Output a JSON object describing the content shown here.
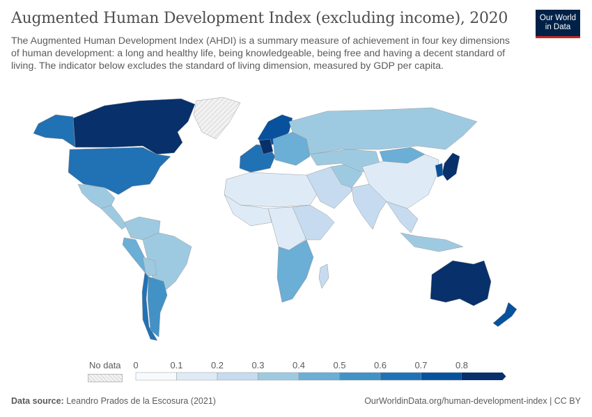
{
  "header": {
    "title": "Augmented Human Development Index (excluding income), 2020",
    "subtitle": "The Augmented Human Development Index (AHDI) is a summary measure of achievement in four key dimensions of human development: a long and healthy life, being knowledgeable, being free and having a decent standard of living. The indicator below excludes the standard of living dimension, measured by GDP per capita.",
    "logo_line1": "Our World",
    "logo_line2": "in Data"
  },
  "legend": {
    "no_data_label": "No data",
    "ticks": [
      "0",
      "0.1",
      "0.2",
      "0.3",
      "0.4",
      "0.5",
      "0.6",
      "0.7",
      "0.8"
    ],
    "bin_colors": [
      "#f7fbff",
      "#deebf7",
      "#c6dbef",
      "#9ecae1",
      "#6baed6",
      "#4292c6",
      "#2171b5",
      "#08519c",
      "#08306b"
    ],
    "no_data_color": "#e0e0e0"
  },
  "map_data": {
    "year": 2020,
    "regions": [
      {
        "name": "Canada",
        "value": 0.85
      },
      {
        "name": "Alaska",
        "value": 0.65
      },
      {
        "name": "United States",
        "value": 0.65
      },
      {
        "name": "Greenland",
        "value": null
      },
      {
        "name": "Mexico",
        "value": 0.35
      },
      {
        "name": "Central America",
        "value": 0.3
      },
      {
        "name": "Colombia/Venezuela",
        "value": 0.3
      },
      {
        "name": "Peru/Ecuador",
        "value": 0.45
      },
      {
        "name": "Brazil",
        "value": 0.35
      },
      {
        "name": "Bolivia",
        "value": 0.3
      },
      {
        "name": "Chile",
        "value": 0.65
      },
      {
        "name": "Argentina",
        "value": 0.55
      },
      {
        "name": "Western Europe",
        "value": 0.6
      },
      {
        "name": "Scandinavia",
        "value": 0.75
      },
      {
        "name": "Germany",
        "value": 0.85
      },
      {
        "name": "Eastern Europe",
        "value": 0.45
      },
      {
        "name": "Russia",
        "value": 0.35
      },
      {
        "name": "North Africa",
        "value": 0.15
      },
      {
        "name": "West Africa",
        "value": 0.1
      },
      {
        "name": "Central Africa",
        "value": 0.15
      },
      {
        "name": "East Africa",
        "value": 0.2
      },
      {
        "name": "Southern Africa",
        "value": 0.45
      },
      {
        "name": "Madagascar",
        "value": 0.25
      },
      {
        "name": "Middle East",
        "value": 0.2
      },
      {
        "name": "Iran",
        "value": 0.35
      },
      {
        "name": "Central Asia",
        "value": 0.3
      },
      {
        "name": "Mongolia",
        "value": 0.45
      },
      {
        "name": "China",
        "value": 0.1
      },
      {
        "name": "India",
        "value": 0.25
      },
      {
        "name": "Southeast Asia",
        "value": 0.2
      },
      {
        "name": "Indonesia",
        "value": 0.35
      },
      {
        "name": "Japan",
        "value": 0.85
      },
      {
        "name": "Korea",
        "value": 0.75
      },
      {
        "name": "Australia",
        "value": 0.85
      },
      {
        "name": "New Zealand",
        "value": 0.75
      }
    ]
  },
  "footer": {
    "source_label": "Data source:",
    "source_text": "Leandro Prados de la Escosura (2021)",
    "url_text": "OurWorldinData.org/human-development-index | CC BY"
  }
}
